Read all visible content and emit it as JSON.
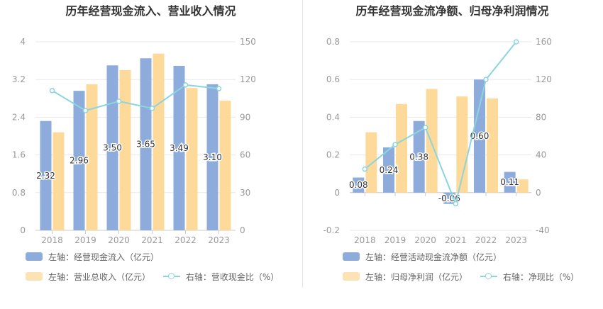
{
  "colors": {
    "bar1": "#8eacdb",
    "bar2": "#fdd99a",
    "line": "#8bd5df",
    "grid": "#e8e8e8",
    "tick": "#999999",
    "label": "#333333"
  },
  "chart_data": [
    {
      "type": "bar",
      "title": "历年经营现金流入、营业收入情况",
      "categories": [
        "2018",
        "2019",
        "2020",
        "2021",
        "2022",
        "2023"
      ],
      "left_axis": {
        "ylim": [
          0,
          4
        ],
        "ticks": [
          "0",
          "0.8",
          "1.6",
          "2.4",
          "3.2",
          "4"
        ]
      },
      "right_axis": {
        "ylim": [
          0,
          150
        ],
        "ticks": [
          "0",
          "30",
          "60",
          "90",
          "120",
          "150"
        ]
      },
      "series": [
        {
          "name": "左轴：经营现金流入（亿元）",
          "type": "bar",
          "axis": "left",
          "values": [
            2.32,
            2.96,
            3.5,
            3.65,
            3.49,
            3.1
          ],
          "labels": [
            "2.32",
            "2.96",
            "3.50",
            "3.65",
            "3.49",
            "3.10"
          ]
        },
        {
          "name": "左轴：营业总收入（亿元）",
          "type": "bar",
          "axis": "left",
          "values": [
            2.08,
            3.1,
            3.4,
            3.75,
            3.02,
            2.75
          ]
        },
        {
          "name": "右轴：营收现金比（%）",
          "type": "line",
          "axis": "right",
          "values": [
            111.2,
            95.3,
            102.7,
            97.1,
            115.7,
            112.8
          ]
        }
      ]
    },
    {
      "type": "bar",
      "title": "历年经营现金流净额、归母净利润情况",
      "categories": [
        "2018",
        "2019",
        "2020",
        "2021",
        "2022",
        "2023"
      ],
      "left_axis": {
        "ylim": [
          -0.2,
          0.8
        ],
        "ticks": [
          "-0.2",
          "0",
          "0.2",
          "0.4",
          "0.6",
          "0.8"
        ]
      },
      "right_axis": {
        "ylim": [
          -40,
          160
        ],
        "ticks": [
          "-40",
          "0",
          "40",
          "80",
          "120",
          "160"
        ]
      },
      "series": [
        {
          "name": "左轴：经营活动现金流净额（亿元）",
          "type": "bar",
          "axis": "left",
          "values": [
            0.08,
            0.24,
            0.38,
            -0.06,
            0.6,
            0.11
          ],
          "labels": [
            "0.08",
            "0.24",
            "0.38",
            "-0.06",
            "0.60",
            "0.11"
          ]
        },
        {
          "name": "左轴：归母净利润（亿元）",
          "type": "bar",
          "axis": "left",
          "values": [
            0.32,
            0.47,
            0.55,
            0.51,
            0.5,
            0.07
          ]
        },
        {
          "name": "右轴：净现比（%）",
          "type": "line",
          "axis": "right",
          "values": [
            25.0,
            51.0,
            69.1,
            -11.8,
            120.0,
            160.0
          ]
        }
      ]
    }
  ]
}
